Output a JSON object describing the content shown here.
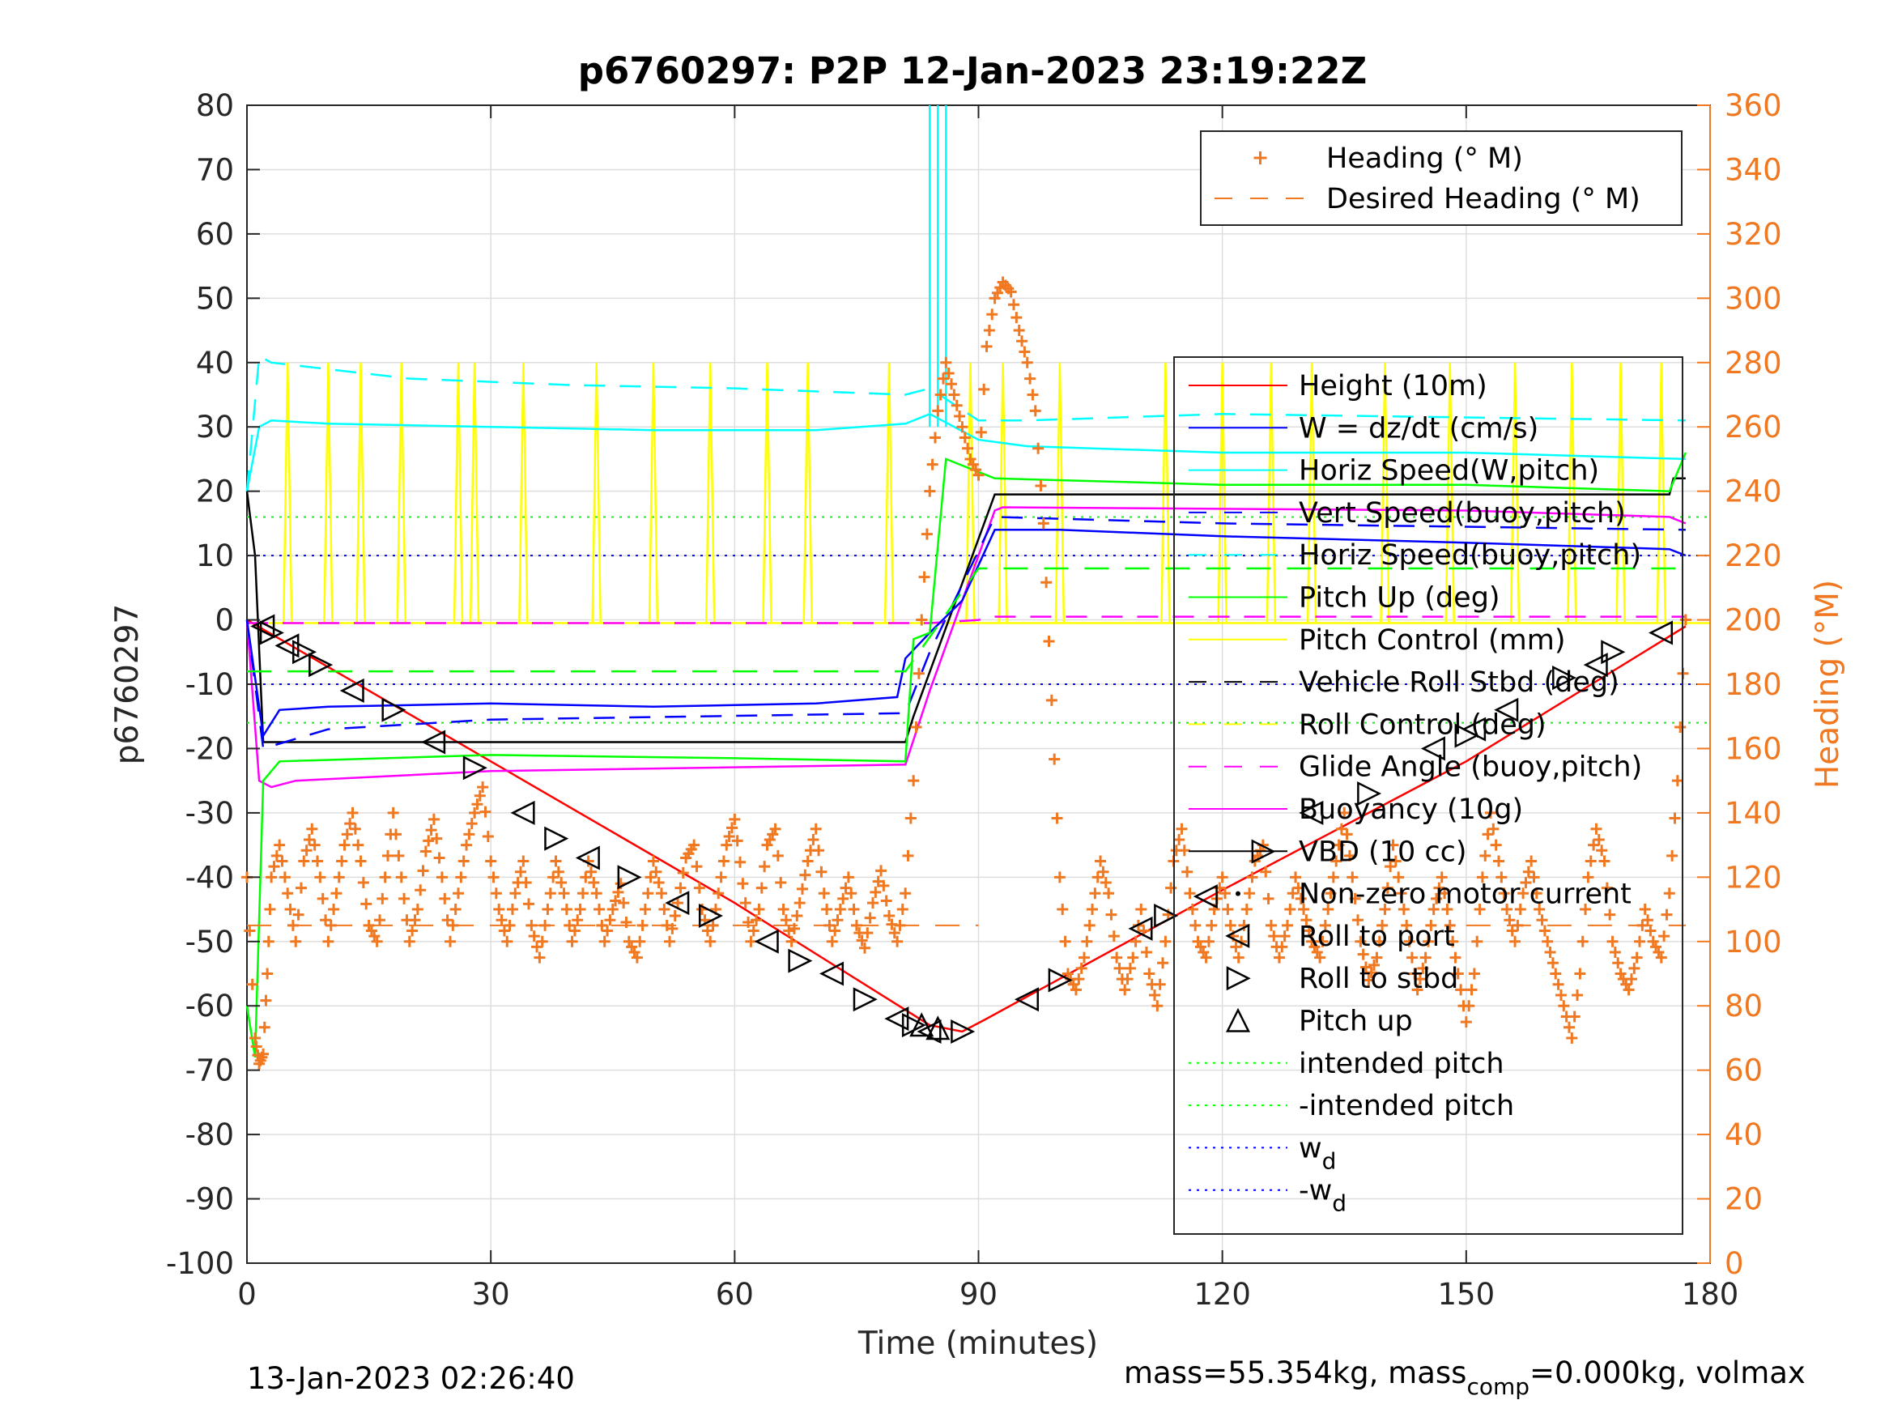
{
  "chart_data": {
    "type": "line",
    "title": "p6760297: P2P 12-Jan-2023 23:19:22Z",
    "xlabel": "Time (minutes)",
    "ylabel": "p6760297",
    "ylabel_right": "Heading (°M)",
    "xlim": [
      0,
      180
    ],
    "ylim": [
      -100,
      80
    ],
    "ylim_right": [
      0,
      360
    ],
    "grid": true,
    "x_ticks": [
      "0",
      "30",
      "60",
      "90",
      "120",
      "150",
      "180"
    ],
    "y_ticks": [
      "80",
      "70",
      "60",
      "50",
      "40",
      "30",
      "20",
      "10",
      "0",
      "-10",
      "-20",
      "-30",
      "-40",
      "-50",
      "-60",
      "-70",
      "-80",
      "-90",
      "-100"
    ],
    "y_ticks_right": [
      "360",
      "340",
      "320",
      "300",
      "280",
      "260",
      "240",
      "220",
      "200",
      "180",
      "160",
      "140",
      "120",
      "100",
      "80",
      "60",
      "40",
      "20",
      "0"
    ],
    "footer_left": "13-Jan-2023 02:26:40",
    "footer_right": "mass=55.354kg, mass",
    "footer_right_sub": "comp",
    "footer_right_tail": "=0.000kg, volmax",
    "colors": {
      "heading": "#f07820",
      "height": "#ff0000",
      "w": "#0000ff",
      "horiz_speed": "#00ffff",
      "vert_speed": "#00008b",
      "pitch_up": "#00ff00",
      "pitch_control": "#ffff00",
      "roll": "#000000",
      "glide_angle": "#ff00ff",
      "buoyancy": "#ff00ff",
      "vbd": "#000000",
      "intended_pitch": "#00ff00",
      "wd": "#0000ff"
    },
    "legend_heading": [
      {
        "label": "Heading (° M)",
        "style": "plus",
        "color": "#f07820"
      },
      {
        "label": "Desired Heading (° M)",
        "style": "dash",
        "color": "#f07820"
      }
    ],
    "legend_main": [
      {
        "label": "Height (10m)",
        "style": "solid",
        "color": "#ff0000"
      },
      {
        "label": "W = dz/dt (cm/s)",
        "style": "solid",
        "color": "#0000ff"
      },
      {
        "label": "Horiz Speed(W,pitch)",
        "style": "solid",
        "color": "#00ffff"
      },
      {
        "label": "Vert Speed(buoy,pitch)",
        "style": "dash",
        "color": "#0000ff"
      },
      {
        "label": "Horiz Speed(buoy,pitch)",
        "style": "dash",
        "color": "#00ffff"
      },
      {
        "label": "Pitch Up (deg)",
        "style": "solid",
        "color": "#00ff00"
      },
      {
        "label": "Pitch Control (mm)",
        "style": "solid",
        "color": "#ffff00"
      },
      {
        "label": "Vehicle Roll Stbd (deg)",
        "style": "dash",
        "color": "#000000"
      },
      {
        "label": "Roll Control (deg)",
        "style": "dash",
        "color": "#ffff00"
      },
      {
        "label": "Glide Angle (buoy,pitch)",
        "style": "dash",
        "color": "#ff00ff"
      },
      {
        "label": "Buoyancy (10g)",
        "style": "solid",
        "color": "#ff00ff"
      },
      {
        "label": "VBD (10 cc)",
        "style": "solid",
        "color": "#000000"
      },
      {
        "label": "Non-zero motor current",
        "style": "dot",
        "color": "#000000"
      },
      {
        "label": "Roll to port",
        "style": "tri-left",
        "color": "#000000"
      },
      {
        "label": "Roll to stbd",
        "style": "tri-right",
        "color": "#000000"
      },
      {
        "label": "Pitch up",
        "style": "tri-up",
        "color": "#000000"
      },
      {
        "label": "intended pitch",
        "style": "dotted",
        "color": "#00ff00"
      },
      {
        "label": "-intended pitch",
        "style": "dotted",
        "color": "#00ff00"
      },
      {
        "label": "w",
        "sub": "d",
        "style": "dotted",
        "color": "#0000ff"
      },
      {
        "label": "-w",
        "sub": "d",
        "style": "dotted",
        "color": "#0000ff"
      }
    ],
    "series": [
      {
        "name": "Height (10m)",
        "color": "#ff0000",
        "dash": "",
        "x": [
          0,
          30,
          60,
          84,
          88,
          91,
          120,
          150,
          177
        ],
        "y": [
          0,
          -22,
          -44,
          -63,
          -64,
          -62,
          -42,
          -22,
          -1
        ]
      },
      {
        "name": "VBD (10 cc)",
        "color": "#000000",
        "dash": "",
        "x": [
          0,
          1,
          2,
          81,
          82,
          92,
          175,
          175.5,
          177
        ],
        "y": [
          20,
          10,
          -19,
          -19,
          -15,
          19.5,
          19.5,
          22,
          22
        ]
      },
      {
        "name": "Buoyancy (10g)",
        "color": "#ff00ff",
        "dash": "",
        "x": [
          0,
          1.5,
          3,
          6,
          30,
          81,
          84,
          92,
          93,
          150,
          175,
          177
        ],
        "y": [
          0,
          -25,
          -26,
          -25,
          -23.5,
          -22.5,
          -11,
          17,
          17.5,
          17,
          16,
          15
        ]
      },
      {
        "name": "Glide Angle (buoy,pitch)",
        "color": "#ff00ff",
        "dash": "26,18",
        "x": [
          0,
          84,
          90,
          92,
          177
        ],
        "y": [
          -0.5,
          -0.5,
          0,
          0.5,
          0.5
        ]
      },
      {
        "name": "W = dz/dt (cm/s)",
        "color": "#0000ff",
        "dash": "",
        "x": [
          0,
          2,
          4,
          10,
          30,
          50,
          70,
          80,
          81,
          84,
          88,
          92,
          100,
          120,
          150,
          175,
          177
        ],
        "y": [
          0,
          -18,
          -14,
          -13.5,
          -13,
          -13.5,
          -13,
          -12,
          -6,
          -2,
          3,
          14,
          14,
          13,
          12,
          11,
          10
        ]
      },
      {
        "name": "Vert Speed(buoy,pitch)",
        "color": "#0000ff",
        "dash": "26,18",
        "x": [
          0,
          2,
          10,
          30,
          81,
          84,
          92,
          120,
          177
        ],
        "y": [
          0,
          -20,
          -17,
          -15.5,
          -14.5,
          -5,
          16,
          15,
          14
        ]
      },
      {
        "name": "Horiz Speed(W,pitch)",
        "color": "#00ffff",
        "dash": "",
        "x": [
          0,
          1.5,
          3,
          10,
          30,
          50,
          70,
          81,
          84,
          90,
          96,
          120,
          150,
          177
        ],
        "y": [
          20,
          30,
          31,
          30.5,
          30,
          29.5,
          29.5,
          30.5,
          32,
          28,
          27,
          26,
          26,
          25
        ]
      },
      {
        "name": "Horiz Speed(buoy,pitch)",
        "color": "#00ffff",
        "dash": "26,18",
        "x": [
          0,
          1.5,
          3,
          20,
          40,
          60,
          81,
          84,
          90,
          96,
          120,
          177
        ],
        "y": [
          20,
          41,
          40,
          37.5,
          36.5,
          36,
          35,
          36,
          31,
          31,
          32,
          31
        ]
      },
      {
        "name": "Pitch Up (deg)",
        "color": "#00ff00",
        "dash": "",
        "x": [
          0,
          1,
          2,
          4,
          30,
          60,
          81,
          82,
          84,
          86,
          88,
          92,
          120,
          150,
          175,
          177
        ],
        "y": [
          -60,
          -68,
          -25,
          -22,
          -21,
          -21.5,
          -22,
          -3,
          -2,
          25,
          24,
          22,
          21,
          21,
          20,
          26
        ]
      },
      {
        "name": "Intended pitch ref",
        "color": "#00ff00",
        "dash": "30,20",
        "x": [
          0,
          81,
          90,
          177
        ],
        "y": [
          -8,
          -8,
          8,
          8
        ]
      }
    ],
    "ref_lines": [
      {
        "name": "intended pitch",
        "y": 16,
        "color": "#00ff00"
      },
      {
        "name": "-intended pitch",
        "y": -16,
        "color": "#00ff00"
      },
      {
        "name": "wd",
        "y": 10,
        "color": "#0000ff"
      },
      {
        "name": "-wd",
        "y": -10,
        "color": "#0000ff"
      }
    ],
    "pitch_control_spikes": [
      5,
      10,
      14,
      19,
      26,
      28,
      34,
      43,
      50,
      57,
      64,
      69,
      79,
      89,
      93,
      100,
      113,
      120,
      126,
      131,
      140,
      148,
      156,
      163,
      169,
      174
    ],
    "desired_heading": [
      {
        "x0": 0,
        "x1": 90,
        "y": 105
      },
      {
        "x0": 150,
        "x1": 177,
        "y": 105
      }
    ],
    "heading_points": [
      [
        0,
        120
      ],
      [
        1,
        70
      ],
      [
        1.5,
        62
      ],
      [
        2,
        65
      ],
      [
        2.5,
        90
      ],
      [
        3,
        120
      ],
      [
        4,
        130
      ],
      [
        5,
        115
      ],
      [
        6,
        100
      ],
      [
        7,
        125
      ],
      [
        8,
        135
      ],
      [
        9,
        120
      ],
      [
        10,
        100
      ],
      [
        11,
        115
      ],
      [
        12,
        130
      ],
      [
        13,
        140
      ],
      [
        14,
        125
      ],
      [
        15,
        105
      ],
      [
        16,
        100
      ],
      [
        17,
        120
      ],
      [
        18,
        140
      ],
      [
        19,
        120
      ],
      [
        20,
        100
      ],
      [
        21,
        110
      ],
      [
        22,
        128
      ],
      [
        23,
        138
      ],
      [
        24,
        120
      ],
      [
        25,
        100
      ],
      [
        26,
        115
      ],
      [
        27,
        130
      ],
      [
        28,
        140
      ],
      [
        29,
        148
      ],
      [
        30,
        125
      ],
      [
        31,
        110
      ],
      [
        32,
        100
      ],
      [
        33,
        115
      ],
      [
        34,
        125
      ],
      [
        35,
        105
      ],
      [
        36,
        95
      ],
      [
        37,
        110
      ],
      [
        38,
        125
      ],
      [
        39,
        115
      ],
      [
        40,
        100
      ],
      [
        41,
        110
      ],
      [
        42,
        125
      ],
      [
        43,
        115
      ],
      [
        44,
        100
      ],
      [
        45,
        110
      ],
      [
        46,
        118
      ],
      [
        47,
        100
      ],
      [
        48,
        95
      ],
      [
        49,
        110
      ],
      [
        50,
        125
      ],
      [
        51,
        115
      ],
      [
        52,
        100
      ],
      [
        53,
        112
      ],
      [
        54,
        126
      ],
      [
        55,
        130
      ],
      [
        56,
        110
      ],
      [
        57,
        100
      ],
      [
        58,
        115
      ],
      [
        59,
        130
      ],
      [
        60,
        138
      ],
      [
        61,
        118
      ],
      [
        62,
        100
      ],
      [
        63,
        110
      ],
      [
        64,
        130
      ],
      [
        65,
        135
      ],
      [
        66,
        110
      ],
      [
        67,
        100
      ],
      [
        68,
        112
      ],
      [
        69,
        125
      ],
      [
        70,
        135
      ],
      [
        71,
        115
      ],
      [
        72,
        100
      ],
      [
        73,
        110
      ],
      [
        74,
        120
      ],
      [
        75,
        105
      ],
      [
        76,
        98
      ],
      [
        77,
        112
      ],
      [
        78,
        122
      ],
      [
        79,
        108
      ],
      [
        80,
        100
      ],
      [
        81,
        115
      ],
      [
        82,
        150
      ],
      [
        83,
        200
      ],
      [
        84,
        240
      ],
      [
        85,
        265
      ],
      [
        86,
        280
      ],
      [
        87,
        270
      ],
      [
        88,
        260
      ],
      [
        89,
        250
      ],
      [
        90,
        245
      ],
      [
        91,
        285
      ],
      [
        92,
        300
      ],
      [
        93,
        305
      ],
      [
        94,
        302
      ],
      [
        95,
        290
      ],
      [
        96,
        280
      ],
      [
        97,
        265
      ],
      [
        98,
        230
      ],
      [
        99,
        175
      ],
      [
        100,
        120
      ],
      [
        101,
        90
      ],
      [
        102,
        85
      ],
      [
        103,
        95
      ],
      [
        104,
        110
      ],
      [
        105,
        125
      ],
      [
        106,
        115
      ],
      [
        107,
        95
      ],
      [
        108,
        85
      ],
      [
        109,
        95
      ],
      [
        110,
        110
      ],
      [
        111,
        90
      ],
      [
        112,
        80
      ],
      [
        113,
        100
      ],
      [
        114,
        125
      ],
      [
        115,
        135
      ],
      [
        116,
        115
      ],
      [
        117,
        100
      ],
      [
        118,
        95
      ],
      [
        119,
        110
      ],
      [
        120,
        120
      ],
      [
        121,
        105
      ],
      [
        122,
        95
      ],
      [
        123,
        110
      ],
      [
        124,
        125
      ],
      [
        125,
        130
      ],
      [
        126,
        105
      ],
      [
        127,
        95
      ],
      [
        128,
        105
      ],
      [
        129,
        120
      ],
      [
        130,
        110
      ],
      [
        131,
        100
      ],
      [
        132,
        95
      ],
      [
        133,
        110
      ],
      [
        134,
        125
      ],
      [
        135,
        140
      ],
      [
        136,
        120
      ],
      [
        137,
        100
      ],
      [
        138,
        88
      ],
      [
        139,
        95
      ],
      [
        140,
        110
      ],
      [
        141,
        130
      ],
      [
        142,
        115
      ],
      [
        143,
        100
      ],
      [
        144,
        85
      ],
      [
        145,
        95
      ],
      [
        146,
        110
      ],
      [
        147,
        120
      ],
      [
        148,
        105
      ],
      [
        149,
        90
      ],
      [
        150,
        75
      ],
      [
        151,
        90
      ],
      [
        152,
        120
      ],
      [
        153,
        140
      ],
      [
        154,
        125
      ],
      [
        155,
        110
      ],
      [
        156,
        100
      ],
      [
        157,
        115
      ],
      [
        158,
        125
      ],
      [
        159,
        110
      ],
      [
        160,
        100
      ],
      [
        161,
        90
      ],
      [
        162,
        80
      ],
      [
        163,
        70
      ],
      [
        164,
        90
      ],
      [
        165,
        120
      ],
      [
        166,
        135
      ],
      [
        167,
        125
      ],
      [
        168,
        100
      ],
      [
        169,
        90
      ],
      [
        170,
        85
      ],
      [
        171,
        95
      ],
      [
        172,
        110
      ],
      [
        173,
        100
      ],
      [
        174,
        95
      ],
      [
        175,
        115
      ],
      [
        176,
        150
      ],
      [
        177,
        200
      ]
    ],
    "roll_to_port": [
      [
        2,
        -1
      ],
      [
        5,
        -4
      ],
      [
        13,
        -11
      ],
      [
        23,
        -19
      ],
      [
        34,
        -30
      ],
      [
        42,
        -37
      ],
      [
        53,
        -44
      ],
      [
        64,
        -50
      ],
      [
        72,
        -55
      ],
      [
        80,
        -62
      ],
      [
        84,
        -64
      ],
      [
        96,
        -59
      ],
      [
        110,
        -48
      ],
      [
        118,
        -43
      ],
      [
        131,
        -30
      ],
      [
        146,
        -20
      ],
      [
        151,
        -17
      ],
      [
        155,
        -14
      ],
      [
        166,
        -7
      ],
      [
        174,
        -2
      ]
    ],
    "roll_to_stbd": [
      [
        3,
        -2
      ],
      [
        7,
        -5
      ],
      [
        9,
        -7
      ],
      [
        18,
        -14
      ],
      [
        28,
        -23
      ],
      [
        38,
        -34
      ],
      [
        47,
        -40
      ],
      [
        57,
        -46
      ],
      [
        68,
        -53
      ],
      [
        76,
        -59
      ],
      [
        82,
        -63
      ],
      [
        88,
        -64
      ],
      [
        100,
        -56
      ],
      [
        113,
        -46
      ],
      [
        125,
        -36
      ],
      [
        138,
        -27
      ],
      [
        150,
        -18
      ],
      [
        162,
        -9
      ],
      [
        168,
        -5
      ]
    ],
    "pitch_up_markers": [
      [
        83,
        -63
      ],
      [
        85,
        -63.5
      ]
    ]
  }
}
